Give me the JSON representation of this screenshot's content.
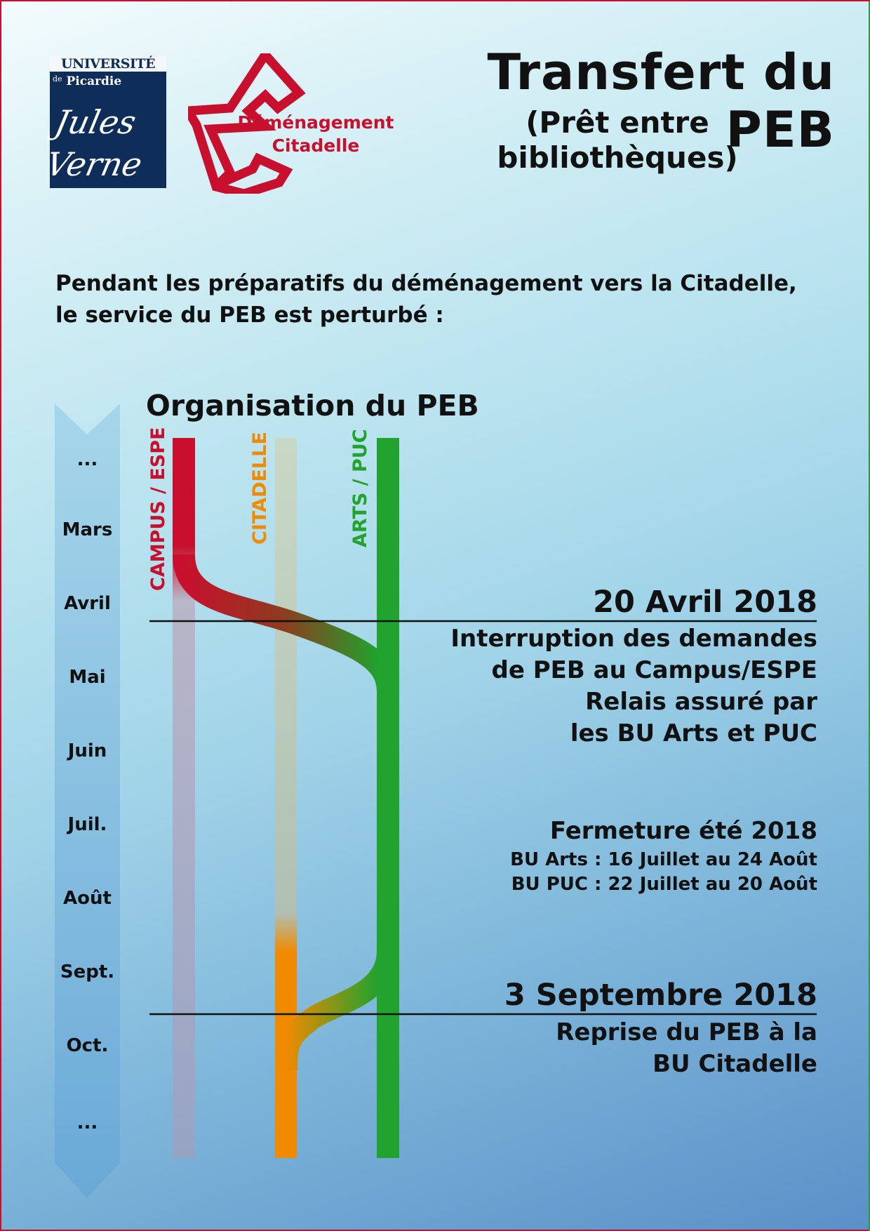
{
  "header": {
    "logo_university": {
      "line1": "UNIVERSITÉ",
      "line2_prefix": "de",
      "line2": "Picardie",
      "signature": "Jules Verne"
    },
    "logo_citadelle": {
      "line1": "Déménagement",
      "line2": "Citadelle"
    },
    "title": "Transfert du PEB",
    "subtitle_line1": "(Prêt entre",
    "subtitle_line2": "bibliothèques)"
  },
  "intro": {
    "line1": "Pendant les préparatifs du déménagement vers la Citadelle,",
    "line2": "le service du PEB est perturbé :"
  },
  "timeline": {
    "title": "Organisation du PEB",
    "months": [
      "...",
      "Mars",
      "Avril",
      "Mai",
      "Juin",
      "Juil.",
      "Août",
      "Sept.",
      "Oct.",
      "..."
    ],
    "tracks": [
      {
        "label": "CAMPUS / ESPE",
        "color": "#c8102e"
      },
      {
        "label": "CITADELLE",
        "color": "#f08a00"
      },
      {
        "label": "ARTS / PUC",
        "color": "#22a22e"
      }
    ]
  },
  "events": [
    {
      "title": "20 Avril 2018",
      "lines": [
        "Interruption des demandes",
        "de PEB au Campus/ESPE",
        "Relais assuré par",
        "les BU Arts et PUC"
      ]
    },
    {
      "title": "Fermeture été 2018",
      "lines": [
        "BU Arts : 16 Juillet au 24 Août",
        "BU PUC : 22 Juillet au 20 Août"
      ]
    },
    {
      "title": "3 Septembre 2018",
      "lines": [
        "Reprise du PEB à la",
        "BU Citadelle"
      ]
    }
  ]
}
